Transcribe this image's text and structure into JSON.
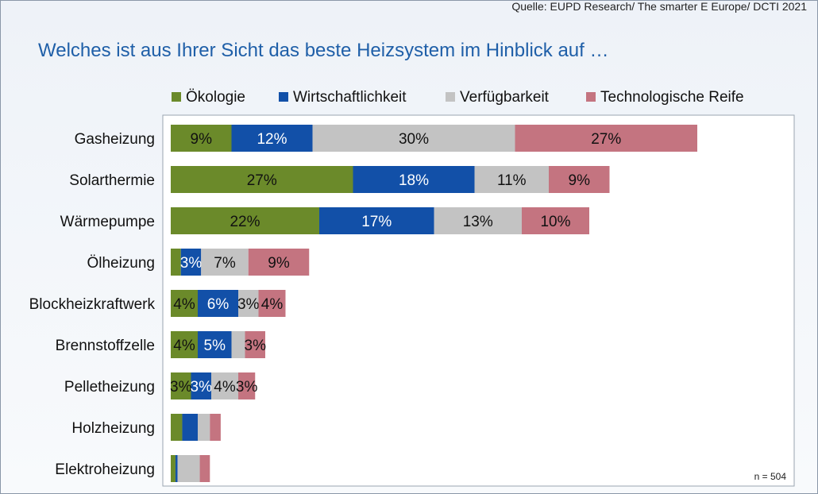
{
  "source": "Quelle: EUPD Research/ The smarter E Europe/ DCTI 2021",
  "title": "Welches ist aus Ihrer Sicht das beste Heizsystem im Hinblick auf …",
  "sample_size": "n = 504",
  "chart_data": {
    "type": "bar",
    "orientation": "horizontal",
    "stacked": true,
    "categories": [
      "Gasheizung",
      "Solarthermie",
      "Wärmepumpe",
      "Ölheizung",
      "Blockheizkraftwerk",
      "Brennstoffzelle",
      "Pelletheizung",
      "Holzheizung",
      "Elektroheizung"
    ],
    "series": [
      {
        "name": "Ökologie",
        "color": "#6b8a2a",
        "label_color": "#111111",
        "values": [
          9,
          27,
          22,
          1.5,
          4,
          4,
          3,
          1.7,
          0.7
        ],
        "labels": [
          "9%",
          "27%",
          "22%",
          "",
          "4%",
          "4%",
          "3%",
          "",
          ""
        ]
      },
      {
        "name": "Wirtschaftlichkeit",
        "color": "#1250a8",
        "label_color": "#ffffff",
        "values": [
          12,
          18,
          17,
          3,
          6,
          5,
          3,
          2.3,
          0.3
        ],
        "labels": [
          "12%",
          "18%",
          "17%",
          "3%",
          "6%",
          "5%",
          "3%",
          "",
          ""
        ]
      },
      {
        "name": "Verfügbarkeit",
        "color": "#c3c3c3",
        "label_color": "#111111",
        "values": [
          30,
          11,
          13,
          7,
          3,
          2,
          4,
          1.8,
          3.3
        ],
        "labels": [
          "30%",
          "11%",
          "13%",
          "7%",
          "3%",
          "",
          "4%",
          "",
          ""
        ]
      },
      {
        "name": "Technologische Reife",
        "color": "#c47480",
        "label_color": "#111111",
        "values": [
          27,
          9,
          10,
          9,
          4,
          3,
          2.5,
          1.6,
          1.5
        ],
        "labels": [
          "27%",
          "9%",
          "10%",
          "9%",
          "4%",
          "3%",
          "3%",
          "",
          ""
        ]
      }
    ]
  }
}
